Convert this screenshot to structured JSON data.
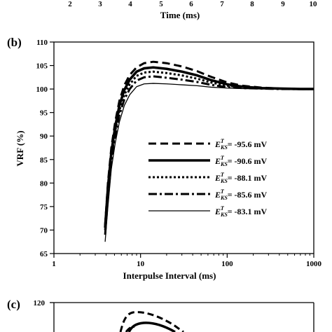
{
  "top_axis": {
    "ticks": [
      "2",
      "3",
      "4",
      "5",
      "6",
      "7",
      "8",
      "9",
      "10"
    ],
    "xlabel": "Time (ms)"
  },
  "panel_b_label": "(b)",
  "panel_c_label": "(c)",
  "panel_c_ytick": "120",
  "chart_data": [
    {
      "type": "line",
      "panel": "(b)",
      "xlabel": "Interpulse Interval (ms)",
      "ylabel": "VRF (%)",
      "xscale": "log",
      "xlim": [
        1,
        1000
      ],
      "ylim": [
        65,
        110
      ],
      "xticks": [
        1,
        10,
        100,
        1000
      ],
      "xtick_labels": [
        "1",
        "10",
        "100",
        "1000"
      ],
      "yticks": [
        65,
        70,
        75,
        80,
        85,
        90,
        95,
        100,
        105,
        110
      ],
      "ytick_labels": [
        "65",
        "70",
        "75",
        "80",
        "85",
        "90",
        "95",
        "100",
        "105",
        "110"
      ],
      "grid": false,
      "legend_position": "center-right",
      "series": [
        {
          "name": "-95.6 mV",
          "style": "long-dash",
          "x": [
            3.9,
            4.2,
            4.6,
            5.1,
            5.7,
            6.5,
            7.5,
            9,
            11,
            14,
            20,
            30,
            45,
            65,
            100,
            150,
            250,
            400,
            700,
            1000
          ],
          "y": [
            71,
            80,
            87.5,
            93,
            97.5,
            100.8,
            103,
            104.6,
            105.5,
            105.8,
            105.5,
            104.8,
            103.8,
            102.6,
            101.4,
            100.7,
            100.3,
            100.1,
            100.0,
            100.0
          ]
        },
        {
          "name": "-90.6 mV",
          "style": "solid-thick",
          "x": [
            3.9,
            4.2,
            4.6,
            5.1,
            5.7,
            6.5,
            7.5,
            9,
            11,
            14,
            20,
            30,
            45,
            65,
            100,
            150,
            250,
            400,
            700,
            1000
          ],
          "y": [
            70.5,
            79,
            86.5,
            92,
            96.5,
            99.8,
            102,
            103.7,
            104.4,
            104.6,
            104.3,
            103.7,
            102.9,
            101.9,
            101.0,
            100.5,
            100.2,
            100.1,
            100.0,
            100.0
          ]
        },
        {
          "name": "-88.1 mV",
          "style": "dotted",
          "x": [
            3.9,
            4.2,
            4.6,
            5.1,
            5.7,
            6.5,
            7.5,
            9,
            11,
            14,
            20,
            30,
            45,
            65,
            100,
            150,
            250,
            400,
            700,
            1000
          ],
          "y": [
            70,
            78,
            85.5,
            91,
            95.5,
            98.8,
            101,
            102.8,
            103.5,
            103.7,
            103.4,
            102.9,
            102.2,
            101.4,
            100.7,
            100.4,
            100.2,
            100.1,
            100.0,
            100.0
          ]
        },
        {
          "name": "-85.6 mV",
          "style": "dash-dot",
          "x": [
            3.9,
            4.2,
            4.6,
            5.1,
            5.7,
            6.5,
            7.5,
            9,
            11,
            14,
            20,
            30,
            45,
            65,
            100,
            150,
            250,
            400,
            700,
            1000
          ],
          "y": [
            69,
            77,
            84.5,
            90,
            94.5,
            97.8,
            100,
            101.8,
            102.5,
            102.7,
            102.4,
            102.0,
            101.5,
            100.9,
            100.4,
            100.2,
            100.1,
            100.0,
            100.0,
            100.0
          ]
        },
        {
          "name": "-83.1 mV",
          "style": "solid-thin",
          "x": [
            3.9,
            4.2,
            4.6,
            5.1,
            5.7,
            6.5,
            7.5,
            9,
            11,
            14,
            20,
            30,
            45,
            65,
            100,
            150,
            250,
            400,
            700,
            1000
          ],
          "y": [
            67.5,
            75,
            83,
            88.5,
            93,
            96.5,
            98.8,
            100.5,
            101.1,
            101.2,
            101.1,
            100.9,
            100.7,
            100.4,
            100.2,
            100.1,
            100.0,
            100.0,
            100.0,
            100.0
          ]
        }
      ]
    }
  ]
}
